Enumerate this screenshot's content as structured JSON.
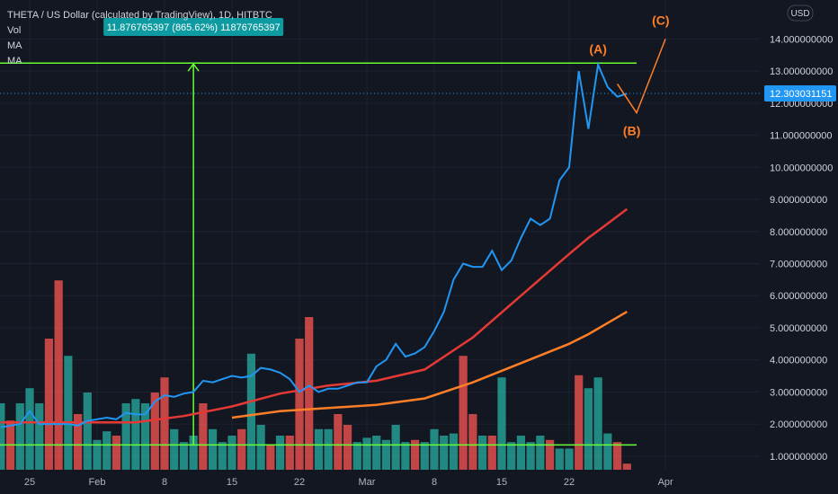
{
  "header": {
    "symbol_line": "THETA / US Dollar (calculated by TradingView), 1D, HITBTC",
    "indicators": [
      "Vol",
      "MA",
      "MA"
    ]
  },
  "currency_button": "USD",
  "measure_label": "11.876765397 (865.62%) 11876765397",
  "last_price_label": "12.303031151",
  "colors": {
    "background": "#131722",
    "price_line": "#2196f3",
    "ma_fast": "#e53935",
    "ma_slow": "#ff7f27",
    "projection": "#ff7f27",
    "measure": "#66ff33",
    "vol_up": "#26a69a",
    "vol_down": "#ef5350",
    "last_price_badge": "#2196f3",
    "measure_badge": "#0d9aa0"
  },
  "wave_labels": [
    "(A)",
    "(B)",
    "(C)"
  ],
  "chart_data": {
    "type": "line",
    "x_ticks": [
      {
        "label": "25",
        "day": 24
      },
      {
        "label": "Feb",
        "day": 31
      },
      {
        "label": "8",
        "day": 38
      },
      {
        "label": "15",
        "day": 45
      },
      {
        "label": "22",
        "day": 52
      },
      {
        "label": "Mar",
        "day": 59
      },
      {
        "label": "8",
        "day": 66
      },
      {
        "label": "15",
        "day": 73
      },
      {
        "label": "22",
        "day": 80
      },
      {
        "label": "Apr",
        "day": 90
      }
    ],
    "y_ticks": [
      "1.000000000",
      "2.000000000",
      "3.000000000",
      "4.000000000",
      "5.000000000",
      "6.000000000",
      "7.000000000",
      "8.000000000",
      "9.000000000",
      "10.000000000",
      "11.000000000",
      "12.000000000",
      "13.000000000",
      "14.000000000"
    ],
    "ylim": [
      0.8,
      14.6
    ],
    "price": {
      "day": [
        21,
        22,
        23,
        24,
        25,
        26,
        27,
        28,
        29,
        30,
        31,
        32,
        33,
        34,
        35,
        36,
        37,
        38,
        39,
        40,
        41,
        42,
        43,
        44,
        45,
        46,
        47,
        48,
        49,
        50,
        51,
        52,
        53,
        54,
        55,
        56,
        57,
        58,
        59,
        60,
        61,
        62,
        63,
        64,
        65,
        66,
        67,
        68,
        69,
        70,
        71,
        72,
        73,
        74,
        75,
        76,
        77,
        78,
        79,
        80,
        81,
        82,
        83,
        84,
        85,
        86
      ],
      "value": [
        1.9,
        1.95,
        2.0,
        2.4,
        2.0,
        2.0,
        2.0,
        2.0,
        1.95,
        2.1,
        2.15,
        2.2,
        2.15,
        2.35,
        2.3,
        2.3,
        2.7,
        2.9,
        2.85,
        2.95,
        3.0,
        3.35,
        3.3,
        3.4,
        3.5,
        3.45,
        3.5,
        3.75,
        3.7,
        3.6,
        3.4,
        3.0,
        3.2,
        3.0,
        3.1,
        3.1,
        3.2,
        3.3,
        3.3,
        3.8,
        4.0,
        4.5,
        4.1,
        4.2,
        4.4,
        4.9,
        5.5,
        6.5,
        7.0,
        6.9,
        6.9,
        7.4,
        6.8,
        7.1,
        7.8,
        8.4,
        8.2,
        8.4,
        9.6,
        10.0,
        13.0,
        11.2,
        13.2,
        12.5,
        12.2,
        12.3
      ]
    },
    "ma_fast": {
      "day": [
        21,
        25,
        30,
        35,
        40,
        45,
        50,
        55,
        60,
        65,
        70,
        75,
        80,
        82,
        84,
        86
      ],
      "value": [
        2.05,
        2.05,
        2.05,
        2.05,
        2.25,
        2.55,
        2.95,
        3.2,
        3.35,
        3.7,
        4.7,
        6.0,
        7.3,
        7.8,
        8.25,
        8.7
      ]
    },
    "ma_slow": {
      "day": [
        45,
        50,
        55,
        60,
        65,
        70,
        75,
        80,
        82,
        84,
        86
      ],
      "value": [
        2.2,
        2.4,
        2.5,
        2.6,
        2.8,
        3.3,
        3.9,
        4.5,
        4.8,
        5.15,
        5.5
      ]
    },
    "projection": {
      "day": [
        85,
        87,
        90
      ],
      "value": [
        12.6,
        11.7,
        14.0
      ]
    },
    "measure": {
      "level_high": 13.25,
      "level_low": 1.35,
      "day_start": 21,
      "day_end": 87,
      "arrow_day": 41
    },
    "volume": {
      "up": [
        1,
        0,
        1,
        1,
        1,
        0,
        0,
        1,
        0,
        1,
        1,
        1,
        0,
        1,
        1,
        1,
        0,
        0,
        1,
        1,
        1,
        0,
        1,
        1,
        1,
        0,
        1,
        1,
        0,
        1,
        0,
        0,
        0,
        1,
        1,
        0,
        0,
        1,
        1,
        1,
        1,
        1,
        1,
        0,
        1,
        1,
        1,
        1,
        0,
        0,
        1,
        0,
        1,
        1,
        1,
        1,
        1,
        0,
        1,
        1,
        0,
        1,
        1,
        1,
        0,
        0
      ],
      "rel": [
        0.3,
        0.22,
        0.3,
        0.37,
        0.3,
        0.6,
        0.87,
        0.52,
        0.25,
        0.35,
        0.13,
        0.17,
        0.15,
        0.3,
        0.32,
        0.3,
        0.35,
        0.42,
        0.18,
        0.12,
        0.15,
        0.3,
        0.18,
        0.12,
        0.15,
        0.18,
        0.53,
        0.2,
        0.11,
        0.15,
        0.15,
        0.6,
        0.7,
        0.18,
        0.18,
        0.25,
        0.2,
        0.12,
        0.14,
        0.15,
        0.13,
        0.2,
        0.12,
        0.13,
        0.12,
        0.18,
        0.15,
        0.16,
        0.52,
        0.25,
        0.15,
        0.15,
        0.42,
        0.12,
        0.15,
        0.12,
        0.15,
        0.13,
        0.09,
        0.09,
        0.43,
        0.37,
        0.42,
        0.16,
        0.12,
        0.02
      ]
    }
  }
}
